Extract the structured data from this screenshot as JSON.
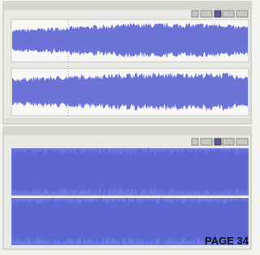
{
  "footer": {
    "page_label": "PAGE 34"
  }
}
